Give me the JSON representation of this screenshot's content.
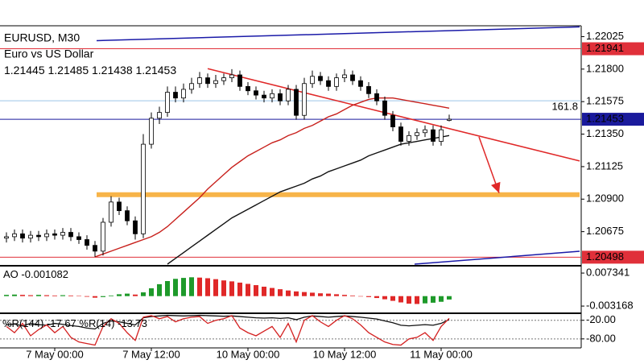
{
  "chart_data": [
    {
      "type": "candlestick",
      "title": "EURUSD, M30",
      "subtitle": "Euro vs US Dollar",
      "xlim": [
        -0.5,
        71.4
      ],
      "xticks": [
        {
          "value": 6,
          "label": "7 May 00:00"
        },
        {
          "value": 18,
          "label": "7 May 12:00"
        },
        {
          "value": 30,
          "label": "10 May 00:00"
        },
        {
          "value": 42,
          "label": "10 May 12:00"
        },
        {
          "value": 54,
          "label": "11 May 00:00"
        }
      ],
      "ylim": [
        1.2045,
        1.221
      ],
      "yticks": [
        1.22025,
        {
          "value": 1.218,
          "label": "1.21800"
        },
        1.21575,
        {
          "value": 1.2135,
          "label": "1.21350"
        },
        1.21125,
        {
          "value": 1.209,
          "label": "1.20900"
        },
        1.20675
      ],
      "open": [
        1.2063,
        1.2064,
        1.2066,
        1.2063,
        1.2065,
        1.2064,
        1.2066,
        1.2065,
        1.2067,
        1.2064,
        1.2062,
        1.2058,
        1.2054,
        1.2074,
        1.2088,
        1.2082,
        1.2075,
        1.2066,
        1.2128,
        1.2146,
        1.215,
        1.2164,
        1.216,
        1.2166,
        1.217,
        1.2174,
        1.217,
        1.2172,
        1.2174,
        1.2176,
        1.2168,
        1.2165,
        1.2162,
        1.216,
        1.2163,
        1.2158,
        1.2166,
        1.2148,
        1.217,
        1.2175,
        1.2172,
        1.2168,
        1.2174,
        1.2176,
        1.2172,
        1.2168,
        1.2163,
        1.2158,
        1.2148,
        1.214,
        1.213,
        1.2134,
        1.2136,
        1.2138,
        1.213,
        1.21445
      ],
      "high": [
        1.2067,
        1.2069,
        1.2069,
        1.2068,
        1.2068,
        1.2069,
        1.2069,
        1.207,
        1.207,
        1.2067,
        1.2065,
        1.2061,
        1.2077,
        1.2092,
        1.2091,
        1.2085,
        1.2078,
        1.2135,
        1.215,
        1.2154,
        1.2168,
        1.2168,
        1.217,
        1.2174,
        1.2178,
        1.2177,
        1.2176,
        1.2177,
        1.218,
        1.2179,
        1.2171,
        1.2168,
        1.2165,
        1.2166,
        1.2166,
        1.2169,
        1.2169,
        1.2174,
        1.2179,
        1.2178,
        1.2175,
        1.2177,
        1.218,
        1.2179,
        1.2175,
        1.2171,
        1.2166,
        1.2161,
        1.2151,
        1.2143,
        1.2137,
        1.2139,
        1.2141,
        1.2141,
        1.2141,
        1.21485
      ],
      "low": [
        1.206,
        1.2061,
        1.206,
        1.206,
        1.2061,
        1.2061,
        1.2062,
        1.2062,
        1.2061,
        1.2059,
        1.2055,
        1.205,
        1.2051,
        1.2071,
        1.2079,
        1.2072,
        1.2062,
        1.2063,
        1.2125,
        1.2142,
        1.2147,
        1.2157,
        1.2157,
        1.2163,
        1.2167,
        1.2167,
        1.2167,
        1.2169,
        1.2171,
        1.2165,
        1.2162,
        1.2159,
        1.2157,
        1.2157,
        1.2155,
        1.2155,
        1.2145,
        1.2145,
        1.2167,
        1.2169,
        1.2165,
        1.2165,
        1.2171,
        1.2169,
        1.2165,
        1.216,
        1.2155,
        1.2145,
        1.2137,
        1.2127,
        1.2127,
        1.2131,
        1.2133,
        1.2127,
        1.2127,
        1.21438
      ],
      "close": [
        1.2064,
        1.2066,
        1.2063,
        1.2065,
        1.2064,
        1.2066,
        1.2065,
        1.2067,
        1.2064,
        1.2062,
        1.2058,
        1.2054,
        1.2074,
        1.2088,
        1.2082,
        1.2075,
        1.2066,
        1.2128,
        1.2146,
        1.215,
        1.2164,
        1.216,
        1.2166,
        1.217,
        1.2174,
        1.217,
        1.2172,
        1.2174,
        1.2176,
        1.2168,
        1.2165,
        1.2162,
        1.216,
        1.2163,
        1.2158,
        1.2166,
        1.2148,
        1.217,
        1.2175,
        1.2172,
        1.2168,
        1.2174,
        1.2176,
        1.2172,
        1.2168,
        1.2163,
        1.2158,
        1.2148,
        1.214,
        1.213,
        1.2134,
        1.2136,
        1.2138,
        1.213,
        1.2138,
        1.21453
      ],
      "up_color": "#ffffff",
      "down_color": "#000000",
      "last_price_color": "#1a1a9c",
      "overlays": [
        {
          "color": "#c8201c",
          "values": [
            null,
            null,
            null,
            null,
            null,
            null,
            null,
            null,
            null,
            null,
            null,
            1.205,
            1.2052,
            1.2054,
            1.2056,
            1.2058,
            1.206,
            1.2062,
            1.2064,
            1.2067,
            1.2071,
            1.2076,
            1.2081,
            1.2086,
            1.2091,
            1.2097,
            1.2102,
            1.2107,
            1.2112,
            1.2116,
            1.212,
            1.2123,
            1.2126,
            1.2129,
            1.2131,
            1.2134,
            1.2136,
            1.2139,
            1.2141,
            1.2144,
            1.2147,
            1.2149,
            1.2152,
            1.2155,
            1.2157,
            1.2159,
            1.216,
            1.216,
            1.216,
            1.2159,
            1.2158,
            1.2157,
            1.2156,
            1.2155,
            1.2154,
            1.2153
          ]
        },
        {
          "color": "#111111",
          "values": [
            null,
            null,
            null,
            null,
            null,
            null,
            null,
            null,
            null,
            null,
            null,
            null,
            null,
            null,
            null,
            null,
            null,
            null,
            null,
            null,
            1.2045,
            1.2049,
            1.2053,
            1.2057,
            1.2061,
            1.2065,
            1.2069,
            1.2073,
            1.2077,
            1.208,
            1.2083,
            1.2086,
            1.2089,
            1.2092,
            1.2095,
            1.2097,
            1.2099,
            1.2101,
            1.2104,
            1.2106,
            1.2109,
            1.2111,
            1.2113,
            1.2115,
            1.2117,
            1.212,
            1.2122,
            1.2124,
            1.2126,
            1.2128,
            1.2129,
            1.213,
            1.2131,
            1.2132,
            1.2133,
            1.2134
          ]
        }
      ],
      "levels": [
        {
          "value": 1.21941,
          "color": "#e0303a",
          "box": true
        },
        {
          "value": 1.20498,
          "color": "#e0303a",
          "box": true
        },
        {
          "value": 1.21581,
          "color": "#9cc4e6",
          "label": "161.8"
        }
      ],
      "drawings": [
        {
          "kind": "line",
          "color": "#1a1aa8",
          "x": [
            11.2,
            71.2
          ],
          "y": [
            1.21997,
            1.22092
          ]
        },
        {
          "kind": "line",
          "color": "#1a1aa8",
          "x": [
            50.7,
            71.2
          ],
          "y": [
            1.2045,
            1.20539
          ]
        },
        {
          "kind": "line",
          "color": "#e02828",
          "x": [
            25,
            71.2
          ],
          "y": [
            1.21803,
            1.21164
          ]
        },
        {
          "kind": "band",
          "color": "#f7b449",
          "x": [
            11.2,
            71.2
          ],
          "y": [
            1.20931,
            1.20931
          ]
        },
        {
          "kind": "arrow",
          "color": "#e02828",
          "x": [
            58.7,
            61.2
          ],
          "y": [
            1.21331,
            1.20942
          ]
        }
      ]
    },
    {
      "type": "bar",
      "name": "AO",
      "ylim": [
        -0.0052,
        0.0089
      ],
      "yticks": [
        0.007341,
        -0.003168
      ],
      "up_color": "#1e9a2a",
      "down_color": "#e02828",
      "values": [
        0.0004,
        0.0005,
        0.0004,
        0.0003,
        0.0004,
        0.0003,
        0.0002,
        0.0003,
        0.0002,
        0.0001,
        -0.0002,
        -0.0005,
        -0.0003,
        0.0002,
        0.0006,
        0.0008,
        0.0005,
        0.0012,
        0.0025,
        0.0038,
        0.0048,
        0.0055,
        0.0058,
        0.006,
        0.0059,
        0.0057,
        0.0054,
        0.005,
        0.0047,
        0.0043,
        0.0039,
        0.0035,
        0.003,
        0.0026,
        0.0022,
        0.0018,
        0.0015,
        0.0013,
        0.0011,
        0.0009,
        0.0008,
        0.0006,
        0.0004,
        0.0002,
        0,
        -0.0003,
        -0.0006,
        -0.001,
        -0.0015,
        -0.002,
        -0.0024,
        -0.0025,
        -0.0023,
        -0.0021,
        -0.0018,
        -0.001082
      ]
    },
    {
      "type": "line",
      "ylim": [
        -109,
        0
      ],
      "yticks": [
        {
          "value": -20,
          "label": "-20.00"
        },
        {
          "value": -80,
          "label": "-80.00"
        }
      ],
      "series": [
        {
          "name": "%R(144)",
          "color": "#111111",
          "values": [
            -35,
            -32,
            -38,
            -30,
            -34,
            -36,
            -30,
            -33,
            -37,
            -40,
            -45,
            -48,
            -30,
            -22,
            -25,
            -30,
            -35,
            -12,
            -8,
            -6,
            -4,
            -5,
            -6,
            -5,
            -4,
            -5,
            -6,
            -7,
            -6,
            -8,
            -10,
            -12,
            -13,
            -12,
            -14,
            -12,
            -18,
            -10,
            -6,
            -8,
            -10,
            -8,
            -6,
            -8,
            -10,
            -13,
            -16,
            -22,
            -28,
            -36,
            -38,
            -36,
            -34,
            -36,
            -30,
            -17.67
          ]
        },
        {
          "name": "%R(14)",
          "color": "#d42020",
          "values": [
            -40,
            -60,
            -30,
            -70,
            -50,
            -35,
            -60,
            -40,
            -75,
            -90,
            -95,
            -100,
            -40,
            -15,
            -30,
            -60,
            -85,
            -10,
            -5,
            -15,
            -8,
            -25,
            -15,
            -10,
            -8,
            -30,
            -20,
            -15,
            -5,
            -45,
            -60,
            -70,
            -55,
            -40,
            -75,
            -30,
            -90,
            -20,
            -5,
            -25,
            -40,
            -20,
            -5,
            -15,
            -35,
            -60,
            -75,
            -90,
            -98,
            -100,
            -80,
            -75,
            -60,
            -85,
            -40,
            -13.73
          ]
        }
      ]
    }
  ]
}
